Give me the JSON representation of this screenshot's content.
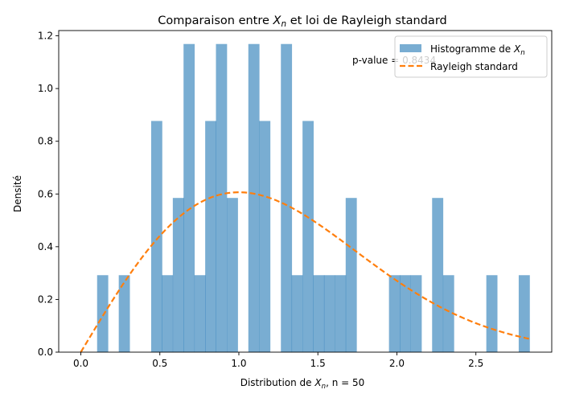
{
  "chart_data": {
    "type": "bar",
    "title_prefix": "Comparaison entre ",
    "title_var": "X",
    "title_sub": "n",
    "title_suffix": " et loi de Rayleigh standard",
    "xlabel_prefix": "Distribution de ",
    "xlabel_var": "X",
    "xlabel_sub": "n",
    "xlabel_suffix": ", n = 50",
    "ylabel": "Densité",
    "xlim": [
      -0.14,
      2.98
    ],
    "ylim": [
      0,
      1.22
    ],
    "xticks": [
      0.0,
      0.5,
      1.0,
      1.5,
      2.0,
      2.5
    ],
    "xtick_labels": [
      "0.0",
      "0.5",
      "1.0",
      "1.5",
      "2.0",
      "2.5"
    ],
    "yticks": [
      0.0,
      0.2,
      0.4,
      0.6,
      0.8,
      1.0,
      1.2
    ],
    "ytick_labels": [
      "0.0",
      "0.2",
      "0.4",
      "0.6",
      "0.8",
      "1.0",
      "1.2"
    ],
    "annotation": "p-value = 0.8434",
    "legend": {
      "placement": "upper right",
      "hist_label_prefix": "Histogramme de ",
      "hist_label_var": "X",
      "hist_label_sub": "n",
      "curve_label": "Rayleigh standard"
    },
    "hist_color": "#1f77b4",
    "curve_color": "#ff7f0e",
    "histogram": {
      "bin_width": 0.0684,
      "bins": [
        {
          "x0": 0.103,
          "density": 0.292
        },
        {
          "x0": 0.24,
          "density": 0.292
        },
        {
          "x0": 0.445,
          "density": 0.877
        },
        {
          "x0": 0.513,
          "density": 0.292
        },
        {
          "x0": 0.582,
          "density": 0.585
        },
        {
          "x0": 0.65,
          "density": 1.169
        },
        {
          "x0": 0.719,
          "density": 0.292
        },
        {
          "x0": 0.787,
          "density": 0.877
        },
        {
          "x0": 0.855,
          "density": 1.169
        },
        {
          "x0": 0.924,
          "density": 0.585
        },
        {
          "x0": 1.06,
          "density": 1.169
        },
        {
          "x0": 1.129,
          "density": 0.877
        },
        {
          "x0": 1.266,
          "density": 1.169
        },
        {
          "x0": 1.334,
          "density": 0.292
        },
        {
          "x0": 1.403,
          "density": 0.877
        },
        {
          "x0": 1.471,
          "density": 0.292
        },
        {
          "x0": 1.539,
          "density": 0.292
        },
        {
          "x0": 1.608,
          "density": 0.292
        },
        {
          "x0": 1.676,
          "density": 0.585
        },
        {
          "x0": 1.95,
          "density": 0.292
        },
        {
          "x0": 2.018,
          "density": 0.292
        },
        {
          "x0": 2.087,
          "density": 0.292
        },
        {
          "x0": 2.223,
          "density": 0.585
        },
        {
          "x0": 2.292,
          "density": 0.292
        },
        {
          "x0": 2.566,
          "density": 0.292
        },
        {
          "x0": 2.771,
          "density": 0.292
        }
      ]
    },
    "curve": {
      "name": "Rayleigh standard",
      "function": "x * exp(-x^2 / 2)",
      "x_range": [
        0.0,
        2.84
      ]
    }
  }
}
